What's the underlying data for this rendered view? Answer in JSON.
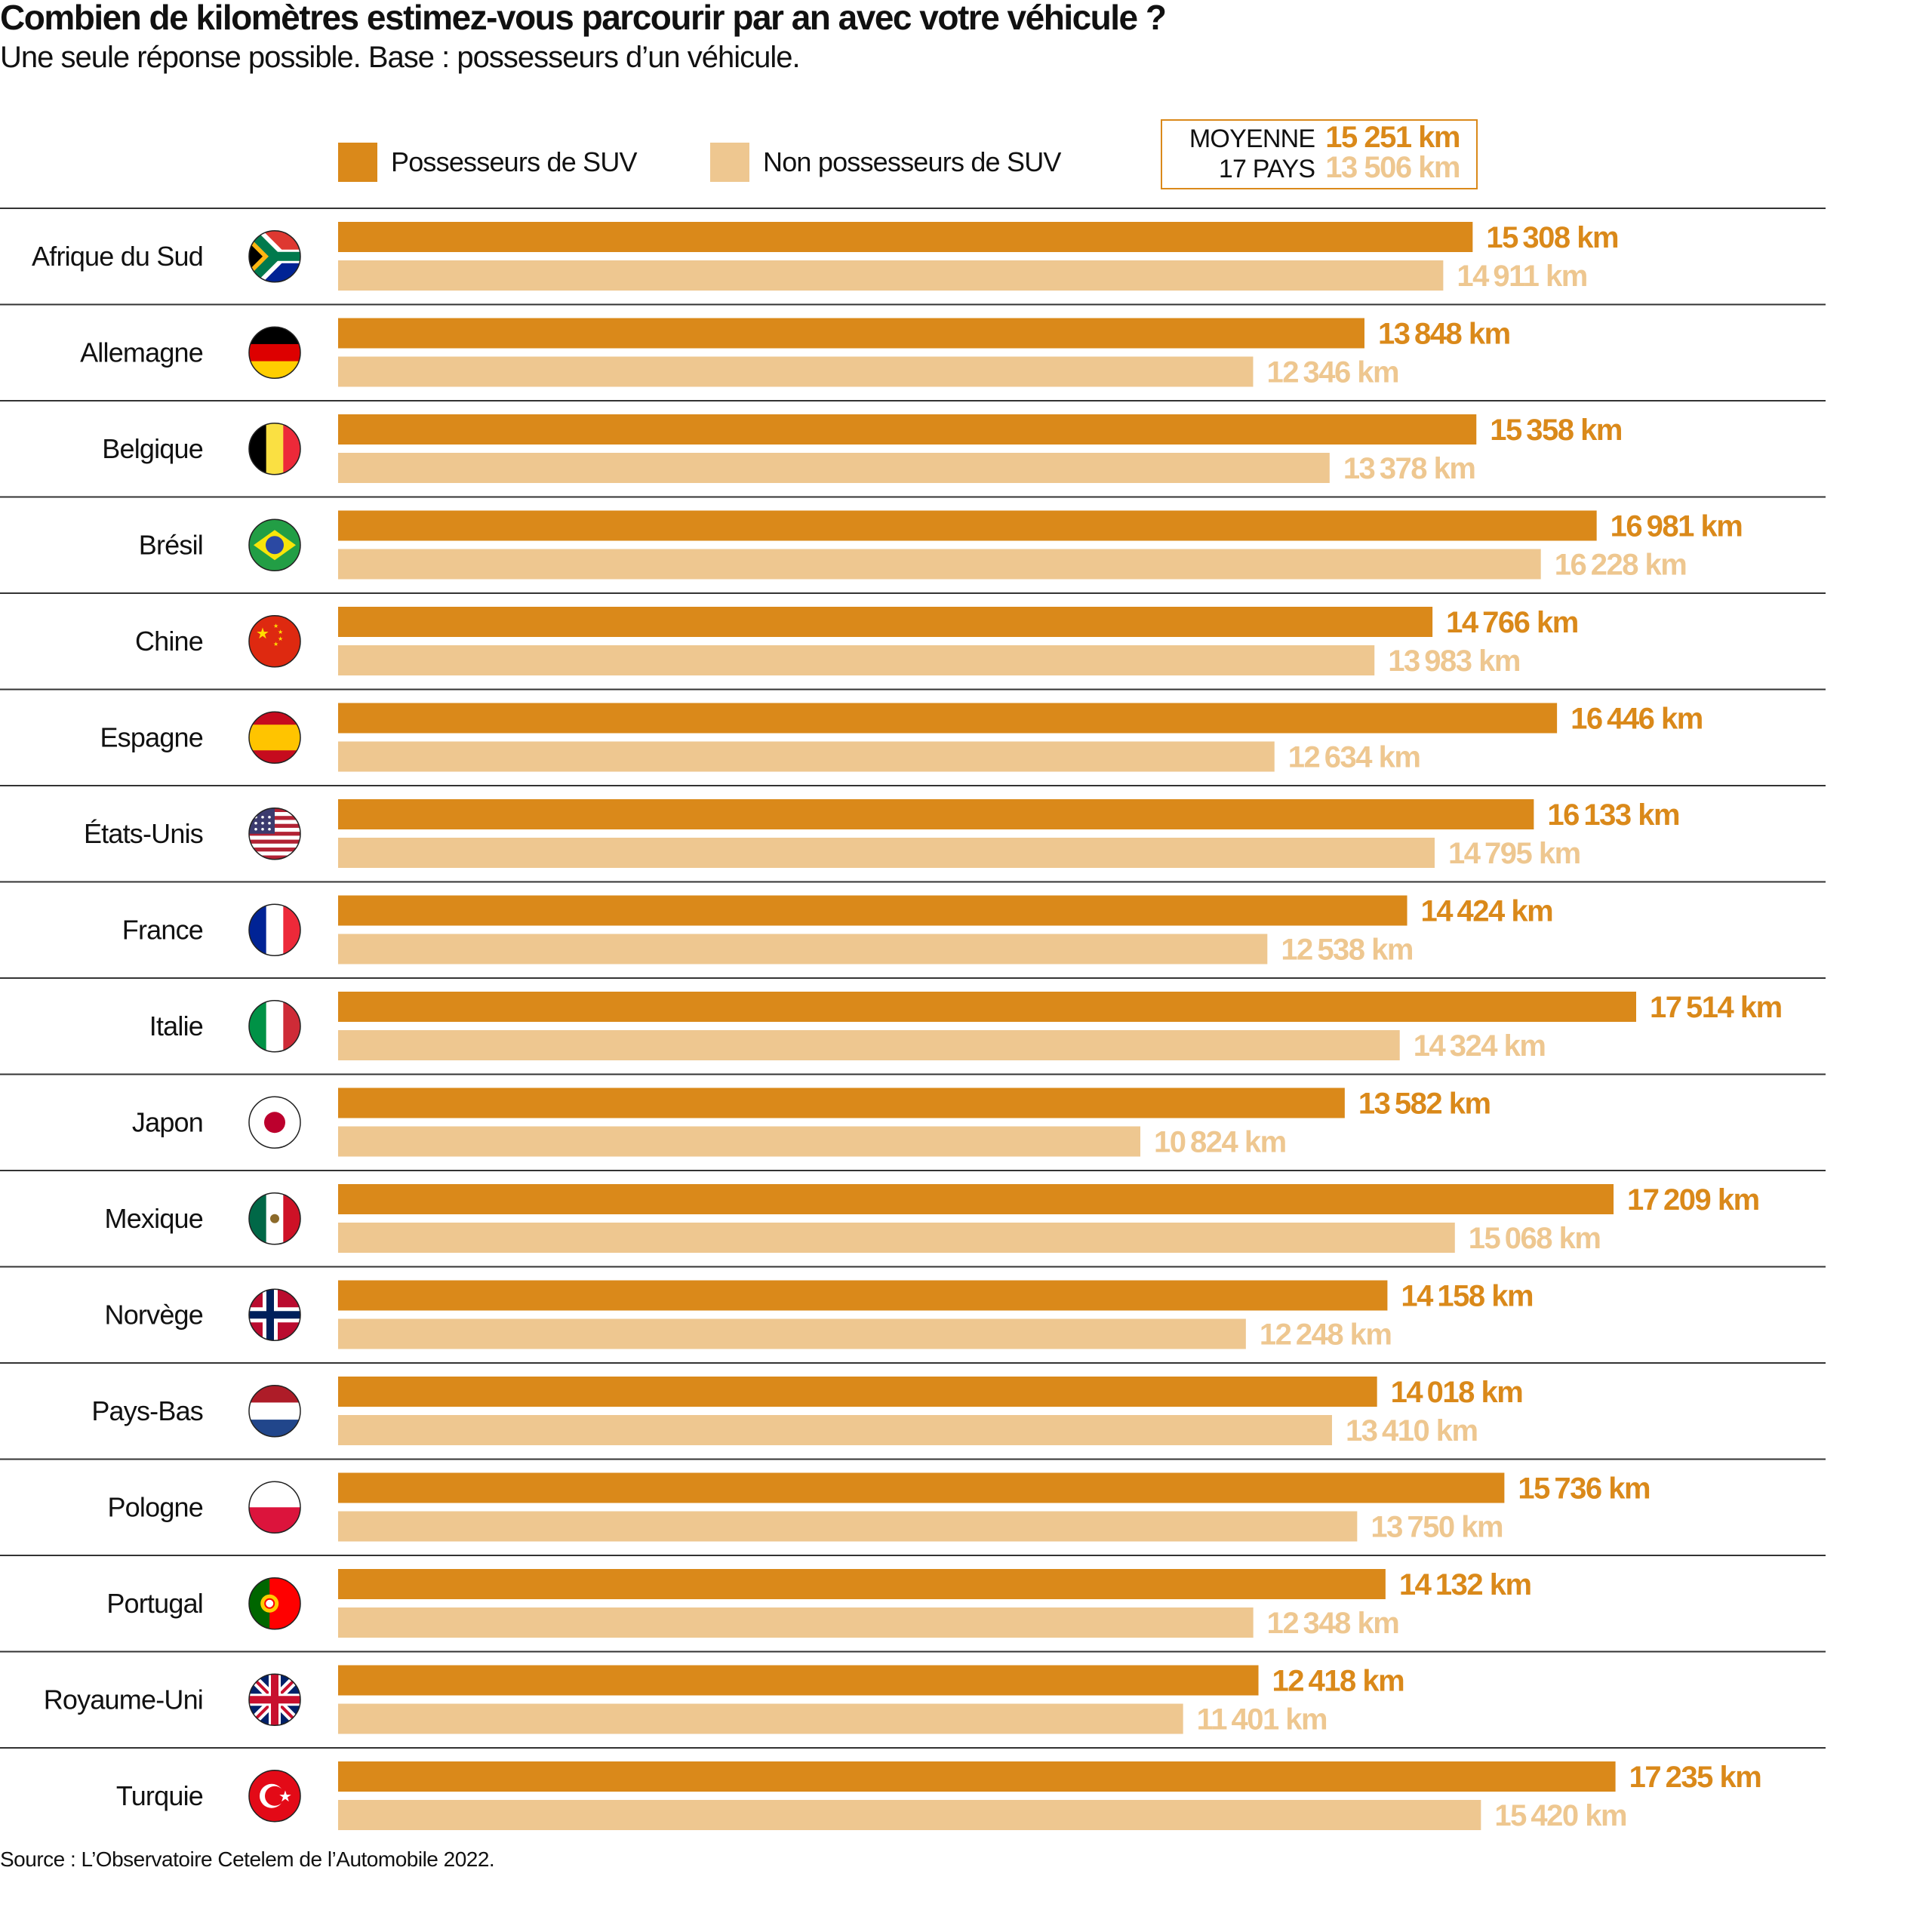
{
  "title": "Combien de kilomètres estimez-vous parcourir par an avec votre véhicule ?",
  "subtitle": "Une seule réponse possible. Base : possesseurs d’un véhicule.",
  "source": "Source : L’Observatoire Cetelem de l’Automobile 2022.",
  "colors": {
    "suv": "#DA891A",
    "non_suv": "#EEC790",
    "rule": "#333333"
  },
  "legend": {
    "suv": "Possesseurs de SUV",
    "non_suv": "Non possesseurs de SUV"
  },
  "average": {
    "label_line1": "MOYENNE",
    "label_line2": "17 PAYS",
    "suv": "15 251 km",
    "non_suv": "13 506 km"
  },
  "chart_data": {
    "type": "bar",
    "orientation": "horizontal",
    "unit": "km",
    "categories": [
      "Afrique du Sud",
      "Allemagne",
      "Belgique",
      "Brésil",
      "Chine",
      "Espagne",
      "États-Unis",
      "France",
      "Italie",
      "Japon",
      "Mexique",
      "Norvège",
      "Pays-Bas",
      "Pologne",
      "Portugal",
      "Royaume-Uni",
      "Turquie"
    ],
    "flag_icons": [
      "flag-south-africa",
      "flag-germany",
      "flag-belgium",
      "flag-brazil",
      "flag-china",
      "flag-spain",
      "flag-usa",
      "flag-france",
      "flag-italy",
      "flag-japan",
      "flag-mexico",
      "flag-norway",
      "flag-netherlands",
      "flag-poland",
      "flag-portugal",
      "flag-uk",
      "flag-turkey"
    ],
    "series": [
      {
        "name": "Possesseurs de SUV",
        "values": [
          15308,
          13848,
          15358,
          16981,
          14766,
          16446,
          16133,
          14424,
          17514,
          13582,
          17209,
          14158,
          14018,
          15736,
          14132,
          12418,
          17235
        ]
      },
      {
        "name": "Non possesseurs de SUV",
        "values": [
          14911,
          12346,
          13378,
          16228,
          13983,
          12634,
          14795,
          12538,
          14324,
          10824,
          15068,
          12248,
          13410,
          13750,
          12348,
          11401,
          15420
        ]
      }
    ],
    "xlim": [
      0,
      17514
    ],
    "grid": false,
    "legend_position": "top"
  }
}
